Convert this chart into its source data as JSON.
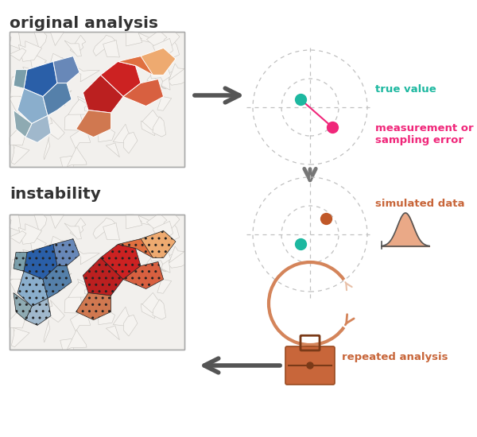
{
  "bg_color": "#ffffff",
  "title_color": "#333333",
  "teal_color": "#1db8a0",
  "magenta_color": "#f0277a",
  "brown_color": "#c8663a",
  "salmon_color": "#d4845a",
  "dark_arrow_color": "#777777",
  "text_original": "original analysis",
  "text_instability": "instability",
  "text_true_value": "true value",
  "text_meas_error": "measurement or\nsampling error",
  "text_simulated": "simulated data",
  "text_repeated": "repeated analysis",
  "target_circle_color": "#bbbbbb",
  "map_bg": "#f0eeec"
}
